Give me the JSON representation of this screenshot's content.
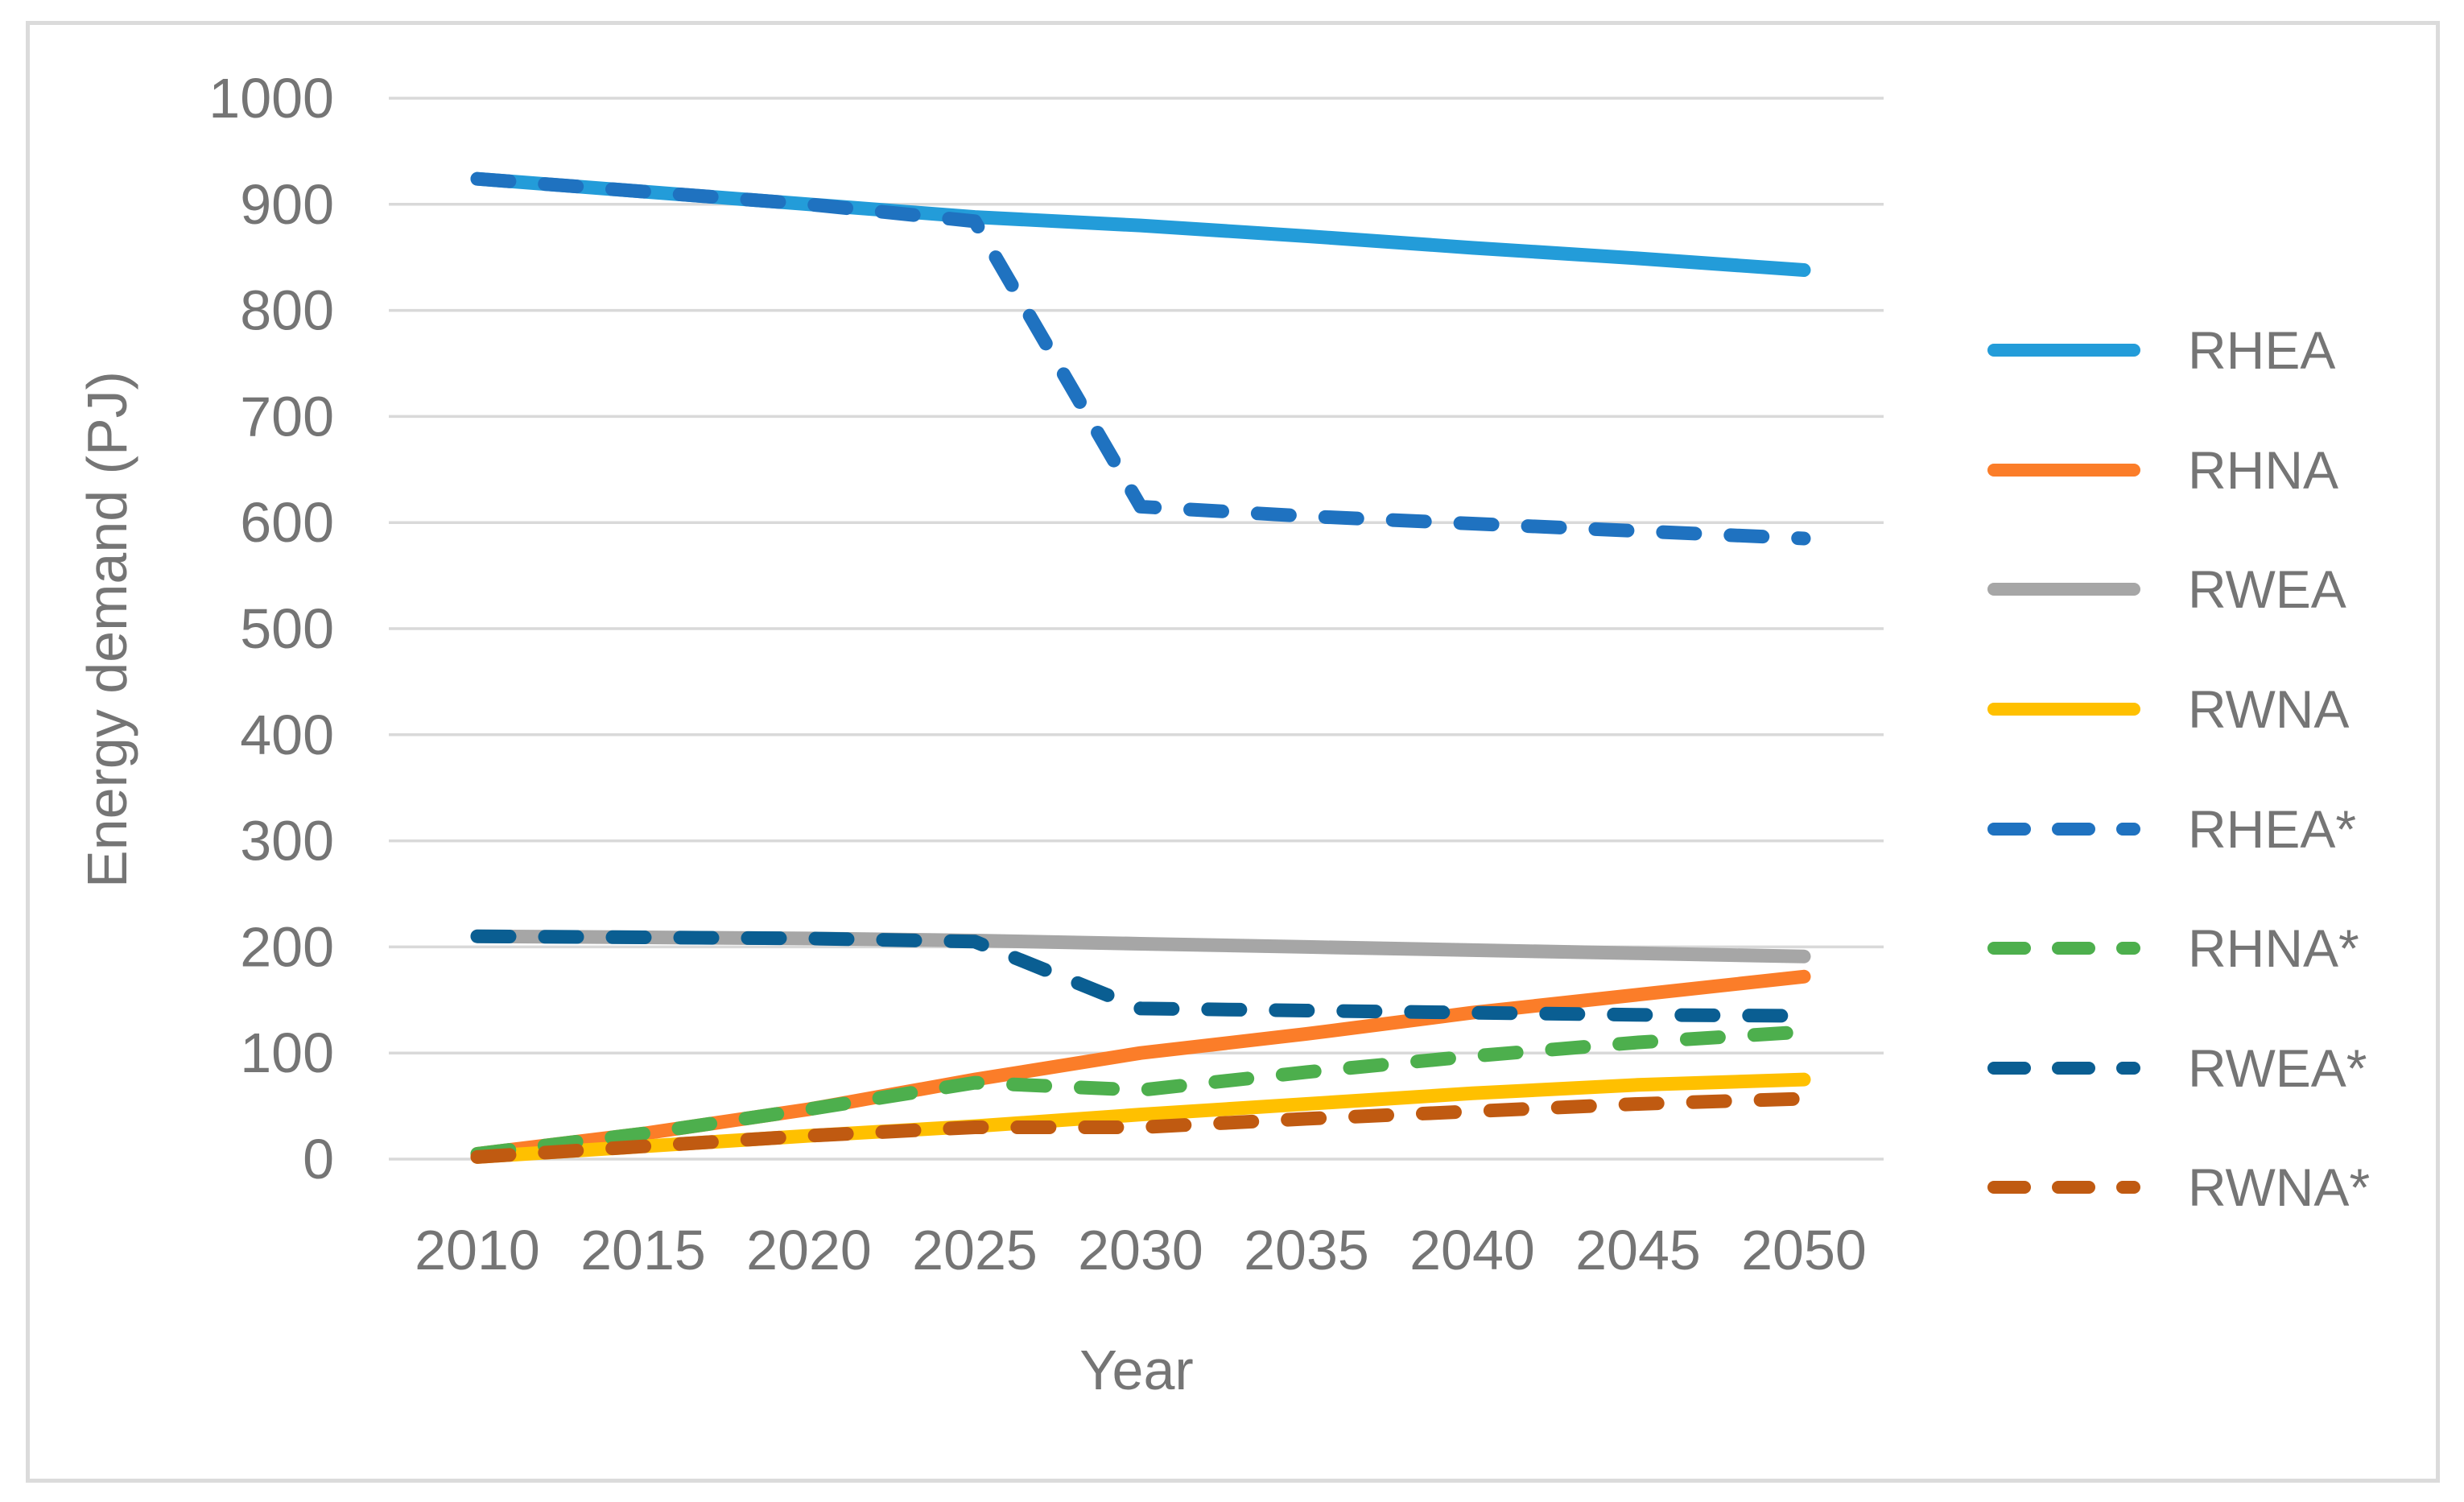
{
  "figure": {
    "background": "#FFFFFF",
    "border_color": "#DBDBDB"
  },
  "chart_data": {
    "type": "line",
    "title": "",
    "xlabel": "Year",
    "ylabel": "Energy demand (PJ)",
    "x": [
      2010,
      2015,
      2020,
      2025,
      2030,
      2035,
      2040,
      2045,
      2050
    ],
    "xticks": [
      2010,
      2015,
      2020,
      2025,
      2030,
      2035,
      2040,
      2045,
      2050
    ],
    "yticks": [
      0,
      100,
      200,
      300,
      400,
      500,
      600,
      700,
      800,
      900,
      1000
    ],
    "ylim": [
      0,
      1000
    ],
    "grid": true,
    "grid_color": "#D9D9D9",
    "text_color": "#757575",
    "legend_position": "right",
    "series": [
      {
        "name": "RHEA",
        "color": "#239CD9",
        "dash": false,
        "values": [
          924,
          912,
          900,
          888,
          880,
          870,
          859,
          849,
          838
        ]
      },
      {
        "name": "RHNA",
        "color": "#FB7D29",
        "dash": false,
        "values": [
          5,
          24,
          47,
          75,
          100,
          118,
          138,
          155,
          172
        ]
      },
      {
        "name": "RWEA",
        "color": "#A6A6A6",
        "dash": false,
        "values": [
          210,
          209,
          208,
          206,
          203,
          200,
          197,
          194,
          191
        ]
      },
      {
        "name": "RWNA",
        "color": "#FFC000",
        "dash": false,
        "values": [
          2,
          12,
          22,
          31,
          42,
          52,
          62,
          70,
          75
        ]
      },
      {
        "name": "RHEA*",
        "color": "#1F72C0",
        "dash": true,
        "values": [
          924,
          912,
          900,
          884,
          615,
          606,
          599,
          592,
          585
        ]
      },
      {
        "name": "RHNA*",
        "color": "#4DAF4D",
        "dash": true,
        "values": [
          5,
          24,
          47,
          72,
          65,
          82,
          97,
          110,
          120
        ]
      },
      {
        "name": "RWEA*",
        "color": "#0A5E92",
        "dash": true,
        "values": [
          210,
          209,
          208,
          205,
          142,
          140,
          138,
          136,
          135
        ]
      },
      {
        "name": "RWNA*",
        "color": "#C05A11",
        "dash": true,
        "values": [
          2,
          12,
          22,
          30,
          30,
          38,
          45,
          52,
          57
        ]
      }
    ]
  }
}
